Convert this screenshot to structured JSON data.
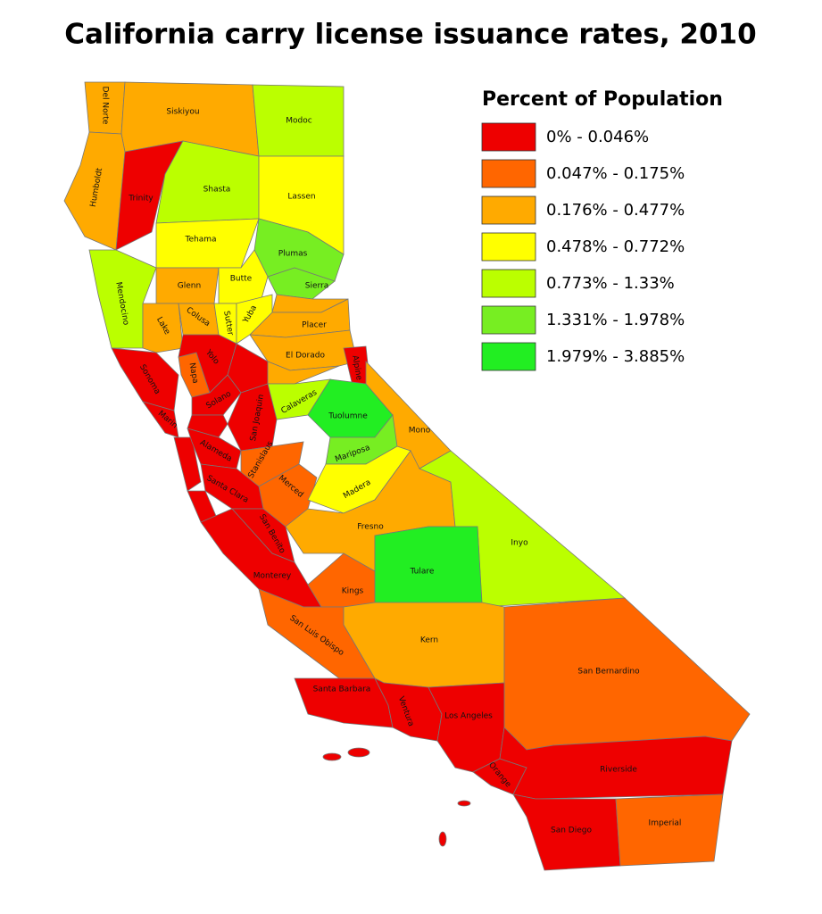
{
  "header": {
    "title": "California carry license issuance rates, 2010"
  },
  "legend": {
    "title": "Percent of Population",
    "items": [
      {
        "label": "0% - 0.046%",
        "color": "#ee0000"
      },
      {
        "label": "0.047% - 0.175%",
        "color": "#ff6600"
      },
      {
        "label": "0.176% - 0.477%",
        "color": "#ffaa00"
      },
      {
        "label": "0.478% - 0.772%",
        "color": "#ffff00"
      },
      {
        "label": "0.773% - 1.33%",
        "color": "#bbff00"
      },
      {
        "label": "1.331% - 1.978%",
        "color": "#77ee22"
      },
      {
        "label": "1.979% - 3.885%",
        "color": "#22ee22"
      }
    ]
  },
  "counties": [
    {
      "name": "Del Norte",
      "class": 2
    },
    {
      "name": "Siskiyou",
      "class": 2
    },
    {
      "name": "Modoc",
      "class": 4
    },
    {
      "name": "Humboldt",
      "class": 2
    },
    {
      "name": "Trinity",
      "class": 0
    },
    {
      "name": "Shasta",
      "class": 4
    },
    {
      "name": "Lassen",
      "class": 3
    },
    {
      "name": "Tehama",
      "class": 3
    },
    {
      "name": "Plumas",
      "class": 5
    },
    {
      "name": "Mendocino",
      "class": 4
    },
    {
      "name": "Glenn",
      "class": 2
    },
    {
      "name": "Butte",
      "class": 3
    },
    {
      "name": "Sierra",
      "class": 5
    },
    {
      "name": null,
      "class": 2
    },
    {
      "name": "Lake",
      "class": 2
    },
    {
      "name": "Colusa",
      "class": 2
    },
    {
      "name": "Sutter",
      "class": 3
    },
    {
      "name": "Yuba",
      "class": 3
    },
    {
      "name": "Placer",
      "class": 2
    },
    {
      "name": "El Dorado",
      "class": 2
    },
    {
      "name": "Alpine",
      "class": 0
    },
    {
      "name": "Sonoma",
      "class": 0
    },
    {
      "name": "Napa",
      "class": 1
    },
    {
      "name": "Yolo",
      "class": 0
    },
    {
      "name": null,
      "class": 0
    },
    {
      "name": "Solano",
      "class": 0
    },
    {
      "name": "Marin",
      "class": 0
    },
    {
      "name": null,
      "class": 2
    },
    {
      "name": "Calaveras",
      "class": 4
    },
    {
      "name": "San Joaquin",
      "class": 0
    },
    {
      "name": null,
      "class": 0
    },
    {
      "name": "Tuolumne",
      "class": 6
    },
    {
      "name": "Mono",
      "class": 2
    },
    {
      "name": null,
      "class": 0
    },
    {
      "name": "Alameda",
      "class": 0
    },
    {
      "name": "Stanislaus",
      "class": 1
    },
    {
      "name": "Mariposa",
      "class": 5
    },
    {
      "name": "Merced",
      "class": 1
    },
    {
      "name": "Madera",
      "class": 3
    },
    {
      "name": "Santa Clara",
      "class": 0
    },
    {
      "name": null,
      "class": 0
    },
    {
      "name": "San Benito",
      "class": 0
    },
    {
      "name": "Fresno",
      "class": 2
    },
    {
      "name": "Monterey",
      "class": 0
    },
    {
      "name": "Inyo",
      "class": 4
    },
    {
      "name": "Kings",
      "class": 1
    },
    {
      "name": "Tulare",
      "class": 6
    },
    {
      "name": "San Luis Obispo",
      "class": 1
    },
    {
      "name": "Kern",
      "class": 2
    },
    {
      "name": "San Bernardino",
      "class": 1
    },
    {
      "name": "Santa Barbara",
      "class": 0
    },
    {
      "name": "Ventura",
      "class": 0
    },
    {
      "name": "Los Angeles",
      "class": 0
    },
    {
      "name": "Orange",
      "class": 0
    },
    {
      "name": "Riverside",
      "class": 0
    },
    {
      "name": "San Diego",
      "class": 0
    },
    {
      "name": "Imperial",
      "class": 1
    }
  ]
}
